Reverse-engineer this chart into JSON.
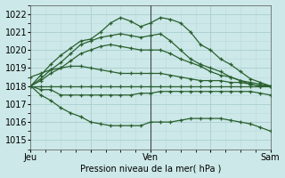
{
  "title": "",
  "xlabel": "Pression niveau de la mer( hPa )",
  "ylabel": "",
  "bg_color": "#cce8e8",
  "grid_color_major": "#aacece",
  "grid_color_minor": "#bbdbdb",
  "line_color": "#2a6030",
  "xlim": [
    0,
    48
  ],
  "ylim": [
    1014.5,
    1022.5
  ],
  "yticks": [
    1015,
    1016,
    1017,
    1018,
    1019,
    1020,
    1021,
    1022
  ],
  "xtick_labels": [
    "Jeu",
    "",
    "Ven",
    "",
    "Sam"
  ],
  "xtick_positions": [
    0,
    12,
    24,
    36,
    48
  ],
  "vlines": [
    24
  ],
  "series": [
    {
      "x": [
        0,
        2,
        4,
        6,
        8,
        10,
        12,
        14,
        16,
        18,
        20,
        22,
        24,
        26,
        28,
        30,
        32,
        34,
        36,
        38,
        40,
        42,
        44,
        46,
        48
      ],
      "y": [
        1018.0,
        1018.6,
        1019.2,
        1019.7,
        1020.1,
        1020.5,
        1020.6,
        1021.0,
        1021.5,
        1021.8,
        1021.6,
        1021.3,
        1021.5,
        1021.8,
        1021.7,
        1021.5,
        1021.0,
        1020.3,
        1020.0,
        1019.5,
        1019.2,
        1018.8,
        1018.4,
        1018.2,
        1018.0
      ]
    },
    {
      "x": [
        0,
        2,
        4,
        6,
        8,
        10,
        12,
        14,
        16,
        18,
        20,
        22,
        24,
        26,
        28,
        30,
        32,
        34,
        36,
        38,
        40,
        42,
        44,
        46,
        48
      ],
      "y": [
        1018.0,
        1018.4,
        1018.9,
        1019.3,
        1019.8,
        1020.3,
        1020.5,
        1020.7,
        1020.8,
        1020.9,
        1020.8,
        1020.7,
        1020.8,
        1020.9,
        1020.5,
        1020.0,
        1019.5,
        1019.2,
        1019.0,
        1018.8,
        1018.5,
        1018.3,
        1018.1,
        1018.0,
        1018.0
      ]
    },
    {
      "x": [
        0,
        2,
        4,
        6,
        8,
        10,
        12,
        14,
        16,
        18,
        20,
        22,
        24,
        26,
        28,
        30,
        32,
        34,
        36,
        38,
        40,
        42,
        44,
        46,
        48
      ],
      "y": [
        1018.0,
        1018.3,
        1018.7,
        1019.0,
        1019.4,
        1019.8,
        1020.0,
        1020.2,
        1020.3,
        1020.2,
        1020.1,
        1020.0,
        1020.0,
        1020.0,
        1019.8,
        1019.5,
        1019.3,
        1019.1,
        1018.8,
        1018.6,
        1018.5,
        1018.3,
        1018.2,
        1018.1,
        1018.0
      ]
    },
    {
      "x": [
        0,
        2,
        4,
        6,
        8,
        10,
        12,
        14,
        16,
        18,
        20,
        22,
        24,
        26,
        28,
        30,
        32,
        34,
        36,
        38,
        40,
        42,
        44,
        46,
        48
      ],
      "y": [
        1018.5,
        1018.7,
        1018.9,
        1019.0,
        1019.1,
        1019.1,
        1019.0,
        1018.9,
        1018.8,
        1018.7,
        1018.7,
        1018.7,
        1018.7,
        1018.7,
        1018.6,
        1018.5,
        1018.4,
        1018.3,
        1018.3,
        1018.3,
        1018.2,
        1018.2,
        1018.1,
        1018.0,
        1018.0
      ]
    },
    {
      "x": [
        0,
        2,
        4,
        6,
        8,
        10,
        12,
        14,
        16,
        18,
        20,
        22,
        24,
        26,
        28,
        30,
        32,
        34,
        36,
        38,
        40,
        42,
        44,
        46,
        48
      ],
      "y": [
        1018.0,
        1018.0,
        1018.0,
        1018.0,
        1018.0,
        1018.0,
        1018.0,
        1018.0,
        1018.0,
        1018.0,
        1018.0,
        1018.0,
        1018.0,
        1018.0,
        1018.0,
        1018.0,
        1018.0,
        1018.0,
        1018.0,
        1018.0,
        1018.0,
        1018.0,
        1018.0,
        1018.0,
        1018.0
      ]
    },
    {
      "x": [
        0,
        2,
        4,
        6,
        8,
        10,
        12,
        14,
        16,
        18,
        20,
        22,
        24,
        26,
        28,
        30,
        32,
        34,
        36,
        38,
        40,
        42,
        44,
        46,
        48
      ],
      "y": [
        1018.0,
        1017.8,
        1017.8,
        1017.5,
        1017.5,
        1017.5,
        1017.5,
        1017.5,
        1017.5,
        1017.5,
        1017.5,
        1017.6,
        1017.6,
        1017.7,
        1017.7,
        1017.7,
        1017.7,
        1017.7,
        1017.7,
        1017.7,
        1017.7,
        1017.7,
        1017.7,
        1017.6,
        1017.5
      ]
    },
    {
      "x": [
        0,
        2,
        4,
        6,
        8,
        10,
        12,
        14,
        16,
        18,
        20,
        22,
        24,
        26,
        28,
        30,
        32,
        34,
        36,
        38,
        40,
        42,
        44,
        46,
        48
      ],
      "y": [
        1018.0,
        1017.5,
        1017.2,
        1016.8,
        1016.5,
        1016.3,
        1016.0,
        1015.9,
        1015.8,
        1015.8,
        1015.8,
        1015.8,
        1016.0,
        1016.0,
        1016.0,
        1016.1,
        1016.2,
        1016.2,
        1016.2,
        1016.2,
        1016.1,
        1016.0,
        1015.9,
        1015.7,
        1015.5
      ]
    }
  ]
}
